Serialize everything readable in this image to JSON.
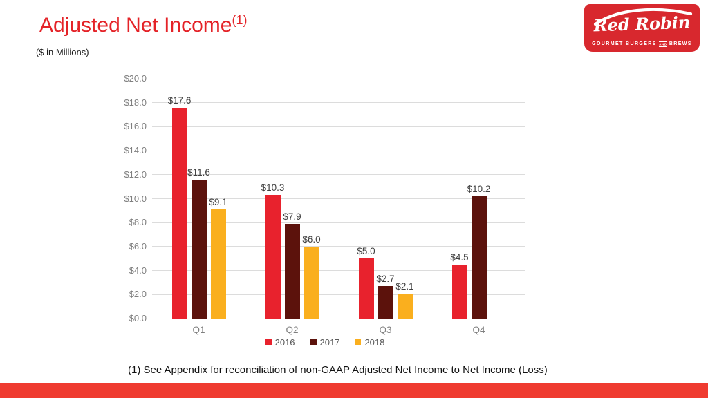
{
  "slide": {
    "title": {
      "text": "Adjusted Net Income",
      "superscript": "(1)",
      "color": "#E42328"
    },
    "subtitle": "($ in Millions)",
    "footnote": "(1) See Appendix for reconciliation of non-GAAP Adjusted Net Income to Net Income (Loss)",
    "accent_bar_color": "#EF3B30"
  },
  "logo": {
    "brand": "Red Robin",
    "tagline_left": "GOURMET BURGERS",
    "tagline_and": "AND",
    "tagline_right": "BREWS",
    "background": "#D8282E"
  },
  "chart_data": {
    "type": "bar",
    "title": "Adjusted Net Income ($ in Millions)",
    "categories": [
      "Q1",
      "Q2",
      "Q3",
      "Q4"
    ],
    "series": [
      {
        "name": "2016",
        "color": "#E8222D",
        "values": [
          17.6,
          10.3,
          5.0,
          4.5
        ],
        "labels": [
          "$17.6",
          "$10.3",
          "$5.0",
          "$4.5"
        ]
      },
      {
        "name": "2017",
        "color": "#5C120C",
        "values": [
          11.6,
          7.9,
          2.7,
          10.2
        ],
        "labels": [
          "$11.6",
          "$7.9",
          "$2.7",
          "$10.2"
        ]
      },
      {
        "name": "2018",
        "color": "#FAAF1E",
        "values": [
          9.1,
          6.0,
          2.1,
          null
        ],
        "labels": [
          "$9.1",
          "$6.0",
          "$2.1",
          null
        ]
      }
    ],
    "xlabel": "",
    "ylabel": "",
    "ylim": [
      0,
      20
    ],
    "yticks": [
      {
        "value": 0,
        "label": "$0.0"
      },
      {
        "value": 2,
        "label": "$2.0"
      },
      {
        "value": 4,
        "label": "$4.0"
      },
      {
        "value": 6,
        "label": "$6.0"
      },
      {
        "value": 8,
        "label": "$8.0"
      },
      {
        "value": 10,
        "label": "$10.0"
      },
      {
        "value": 12,
        "label": "$12.0"
      },
      {
        "value": 14,
        "label": "$14.0"
      },
      {
        "value": 16,
        "label": "$16.0"
      },
      {
        "value": 18,
        "label": "$18.0"
      },
      {
        "value": 20,
        "label": "$20.0"
      }
    ],
    "grid": true,
    "legend_position": "bottom",
    "colors": {
      "gridline": "#DCDCDC",
      "axis_line": "#C8C8C8",
      "tick_label": "#7F7F7F",
      "data_label": "#404040",
      "legend_text": "#595959"
    }
  }
}
